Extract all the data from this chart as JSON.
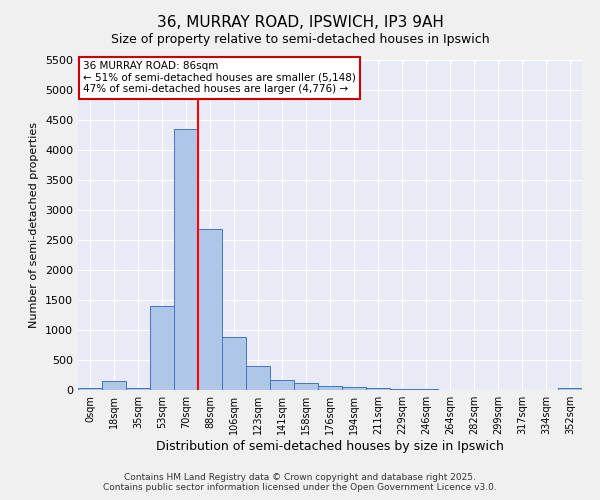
{
  "title_line1": "36, MURRAY ROAD, IPSWICH, IP3 9AH",
  "title_line2": "Size of property relative to semi-detached houses in Ipswich",
  "xlabel": "Distribution of semi-detached houses by size in Ipswich",
  "ylabel": "Number of semi-detached properties",
  "bin_labels": [
    "0sqm",
    "18sqm",
    "35sqm",
    "53sqm",
    "70sqm",
    "88sqm",
    "106sqm",
    "123sqm",
    "141sqm",
    "158sqm",
    "176sqm",
    "194sqm",
    "211sqm",
    "229sqm",
    "246sqm",
    "264sqm",
    "282sqm",
    "299sqm",
    "317sqm",
    "334sqm",
    "352sqm"
  ],
  "bar_heights": [
    30,
    150,
    30,
    1400,
    4350,
    2680,
    880,
    400,
    175,
    110,
    75,
    50,
    30,
    15,
    10,
    8,
    5,
    5,
    3,
    3,
    30
  ],
  "bar_color": "#aec6e8",
  "bar_edge_color": "#4472c4",
  "background_color": "#e8eaf6",
  "grid_color": "#ffffff",
  "fig_bg_color": "#f0f0f0",
  "ylim": [
    0,
    5500
  ],
  "yticks": [
    0,
    500,
    1000,
    1500,
    2000,
    2500,
    3000,
    3500,
    4000,
    4500,
    5000,
    5500
  ],
  "red_line_bin_index": 5,
  "annotation_text_line1": "36 MURRAY ROAD: 86sqm",
  "annotation_text_line2": "← 51% of semi-detached houses are smaller (5,148)",
  "annotation_text_line3": "47% of semi-detached houses are larger (4,776) →",
  "annotation_box_color": "#ffffff",
  "annotation_box_edge_color": "#cc0000",
  "footer_line1": "Contains HM Land Registry data © Crown copyright and database right 2025.",
  "footer_line2": "Contains public sector information licensed under the Open Government Licence v3.0."
}
